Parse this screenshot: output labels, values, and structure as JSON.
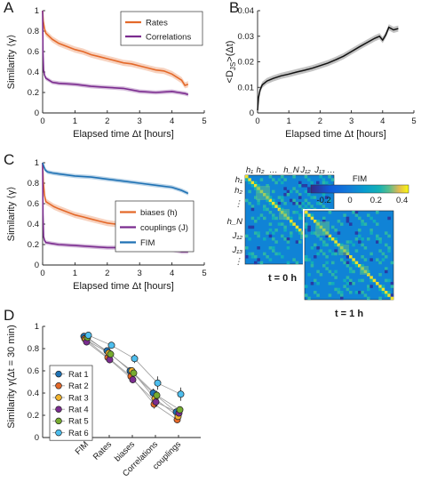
{
  "panels": {
    "a": "A",
    "b": "B",
    "c": "C",
    "d": "D"
  },
  "chart_data": [
    {
      "id": "A",
      "type": "line",
      "xlabel": "Elapsed time Δt [hours]",
      "ylabel": "Similarity ⟨γ⟩",
      "xlim": [
        0,
        5
      ],
      "ylim": [
        0,
        1
      ],
      "xticks": [
        "0",
        "1",
        "2",
        "3",
        "4",
        "5"
      ],
      "yticks": [
        "0",
        "0.2",
        "0.4",
        "0.6",
        "0.8",
        "1"
      ],
      "legend": "top-right",
      "series": [
        {
          "name": "Rates",
          "color": "#e4692a",
          "band": 0.03,
          "x": [
            0,
            0.02,
            0.06,
            0.1,
            0.2,
            0.3,
            0.5,
            0.75,
            1.0,
            1.25,
            1.5,
            1.75,
            2.0,
            2.25,
            2.5,
            2.75,
            3.0,
            3.25,
            3.5,
            3.75,
            4.0,
            4.15,
            4.3,
            4.4,
            4.5
          ],
          "y": [
            1.0,
            0.9,
            0.82,
            0.78,
            0.75,
            0.72,
            0.68,
            0.65,
            0.62,
            0.6,
            0.57,
            0.55,
            0.53,
            0.51,
            0.49,
            0.48,
            0.46,
            0.44,
            0.42,
            0.41,
            0.38,
            0.35,
            0.32,
            0.27,
            0.28
          ]
        },
        {
          "name": "Correlations",
          "color": "#7b2c8f",
          "band": 0.02,
          "x": [
            0,
            0.01,
            0.03,
            0.06,
            0.1,
            0.3,
            0.5,
            1.0,
            1.5,
            2.0,
            2.5,
            3.0,
            3.5,
            4.0,
            4.2,
            4.4,
            4.5
          ],
          "y": [
            1.0,
            0.6,
            0.42,
            0.37,
            0.34,
            0.3,
            0.29,
            0.28,
            0.26,
            0.25,
            0.24,
            0.21,
            0.2,
            0.21,
            0.2,
            0.19,
            0.18
          ]
        }
      ]
    },
    {
      "id": "B",
      "type": "line",
      "xlabel": "Elapsed time Δt [hours]",
      "ylabel": "<D_JS>(Δt)",
      "xlim": [
        0,
        5
      ],
      "ylim": [
        0,
        0.04
      ],
      "xticks": [
        "0",
        "1",
        "2",
        "3",
        "4",
        "5"
      ],
      "yticks": [
        "0",
        "0.01",
        "0.02",
        "0.03",
        "0.04"
      ],
      "series": [
        {
          "color": "#111111",
          "band": 0.0012,
          "x": [
            0,
            0.03,
            0.08,
            0.15,
            0.3,
            0.5,
            0.75,
            1.0,
            1.25,
            1.5,
            1.75,
            2.0,
            2.25,
            2.5,
            2.75,
            3.0,
            3.25,
            3.5,
            3.75,
            3.9,
            4.0,
            4.1,
            4.2,
            4.35,
            4.5
          ],
          "y": [
            0.001,
            0.006,
            0.009,
            0.011,
            0.0125,
            0.0135,
            0.0145,
            0.0152,
            0.016,
            0.0167,
            0.0175,
            0.0185,
            0.0195,
            0.0208,
            0.0222,
            0.024,
            0.0258,
            0.0275,
            0.0292,
            0.03,
            0.0285,
            0.0305,
            0.0335,
            0.0325,
            0.033
          ]
        }
      ]
    },
    {
      "id": "C",
      "type": "line",
      "xlabel": "Elapsed time Δt [hours]",
      "ylabel": "Similarity ⟨γ⟩",
      "xlim": [
        0,
        5
      ],
      "ylim": [
        0,
        1
      ],
      "xticks": [
        "0",
        "1",
        "2",
        "3",
        "4",
        "5"
      ],
      "yticks": [
        "0",
        "0.2",
        "0.4",
        "0.6",
        "0.8",
        "1"
      ],
      "legend": "center-right",
      "series": [
        {
          "name": "biases (h)",
          "color": "#e4692a",
          "band": 0.03,
          "x": [
            0,
            0.02,
            0.06,
            0.1,
            0.2,
            0.35,
            0.5,
            0.75,
            1.0,
            1.25,
            1.5,
            1.75,
            2.0,
            2.25,
            2.5,
            2.75,
            3.0,
            3.25,
            3.5,
            3.75,
            4.0,
            4.2,
            4.4,
            4.5
          ],
          "y": [
            1.0,
            0.82,
            0.68,
            0.62,
            0.6,
            0.57,
            0.55,
            0.52,
            0.49,
            0.47,
            0.45,
            0.43,
            0.41,
            0.4,
            0.38,
            0.36,
            0.35,
            0.33,
            0.31,
            0.3,
            0.28,
            0.26,
            0.22,
            0.23
          ]
        },
        {
          "name": "couplings (J)",
          "color": "#7b2c8f",
          "band": 0.02,
          "x": [
            0,
            0.01,
            0.03,
            0.06,
            0.1,
            0.3,
            0.5,
            1.0,
            1.5,
            2.0,
            2.5,
            3.0,
            3.5,
            4.0,
            4.3,
            4.5
          ],
          "y": [
            1.0,
            0.5,
            0.28,
            0.24,
            0.22,
            0.21,
            0.2,
            0.19,
            0.18,
            0.17,
            0.17,
            0.16,
            0.16,
            0.15,
            0.13,
            0.13
          ]
        },
        {
          "name": "FIM",
          "color": "#1f72b4",
          "band": 0.02,
          "x": [
            0,
            0.03,
            0.08,
            0.15,
            0.3,
            0.5,
            1.0,
            1.5,
            2.0,
            2.5,
            3.0,
            3.5,
            4.0,
            4.3,
            4.5
          ],
          "y": [
            1.0,
            0.97,
            0.93,
            0.91,
            0.9,
            0.89,
            0.87,
            0.86,
            0.84,
            0.82,
            0.8,
            0.78,
            0.76,
            0.73,
            0.7
          ]
        }
      ]
    },
    {
      "id": "C-inset",
      "type": "heatmap",
      "colorbar_title": "FIM",
      "colorbar_ticks": [
        "-0.2",
        "0",
        "0.2",
        "0.4"
      ],
      "colorbar_range": [
        -0.3,
        0.45
      ],
      "row_labels": [
        "h₁",
        "h₂",
        "⋮",
        "h_N",
        "J₁₂",
        "J₁₃",
        "⋮"
      ],
      "col_labels": [
        "h₁",
        "h₂",
        "…",
        "h_N",
        "J₁₂",
        "J₁₃",
        "…"
      ],
      "captions": [
        "t = 0 h",
        "t = 1 h"
      ]
    },
    {
      "id": "D",
      "type": "scatter",
      "ylabel": "Similarity γ(Δt = 30 min)",
      "ylim": [
        0,
        1
      ],
      "yticks": [
        "0",
        "0.2",
        "0.4",
        "0.6",
        "0.8",
        "1"
      ],
      "categories": [
        "FIM",
        "Rates",
        "biases",
        "Correlations",
        "couplings"
      ],
      "legend": "left",
      "series": [
        {
          "name": "Rat 1",
          "color": "#1f72b4",
          "values": [
            0.91,
            0.78,
            0.6,
            0.4,
            0.23
          ],
          "err": [
            0.02,
            0.03,
            0.03,
            0.04,
            0.02
          ]
        },
        {
          "name": "Rat 2",
          "color": "#e4692a",
          "values": [
            0.89,
            0.72,
            0.55,
            0.3,
            0.16
          ],
          "err": [
            0.02,
            0.03,
            0.03,
            0.04,
            0.02
          ]
        },
        {
          "name": "Rat 3",
          "color": "#f2b42e",
          "values": [
            0.88,
            0.76,
            0.6,
            0.35,
            0.19
          ],
          "err": [
            0.02,
            0.03,
            0.03,
            0.04,
            0.02
          ]
        },
        {
          "name": "Rat 4",
          "color": "#7b2c8f",
          "values": [
            0.86,
            0.7,
            0.52,
            0.32,
            0.22
          ],
          "err": [
            0.02,
            0.03,
            0.03,
            0.04,
            0.02
          ]
        },
        {
          "name": "Rat 5",
          "color": "#77ac30",
          "values": [
            0.9,
            0.75,
            0.58,
            0.38,
            0.25
          ],
          "err": [
            0.02,
            0.03,
            0.03,
            0.04,
            0.02
          ]
        },
        {
          "name": "Rat 6",
          "color": "#4dbeee",
          "values": [
            0.92,
            0.83,
            0.71,
            0.49,
            0.39
          ],
          "err": [
            0.02,
            0.03,
            0.04,
            0.06,
            0.06
          ]
        }
      ]
    }
  ]
}
